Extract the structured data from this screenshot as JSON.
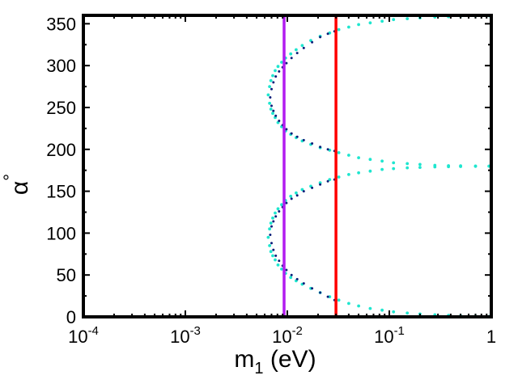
{
  "chart_data": {
    "type": "scatter",
    "title": "",
    "xlabel": {
      "main": "m",
      "sub": "1",
      "rest": " (eV)"
    },
    "ylabel": {
      "main": "α",
      "sup": "°"
    },
    "xscale": "log",
    "xlim": [
      0.0001,
      1
    ],
    "ylim": [
      0,
      360
    ],
    "x_ticks": [
      {
        "value": 0.0001,
        "base": "10",
        "exp": "-4"
      },
      {
        "value": 0.001,
        "base": "10",
        "exp": "-3"
      },
      {
        "value": 0.01,
        "base": "10",
        "exp": "-2"
      },
      {
        "value": 0.1,
        "base": "10",
        "exp": "-1"
      },
      {
        "value": 1,
        "base": "1",
        "exp": ""
      }
    ],
    "y_ticks": [
      {
        "value": 0,
        "label": "0"
      },
      {
        "value": 50,
        "label": "50"
      },
      {
        "value": 100,
        "label": "100"
      },
      {
        "value": 150,
        "label": "150"
      },
      {
        "value": 200,
        "label": "200"
      },
      {
        "value": 250,
        "label": "250"
      },
      {
        "value": 300,
        "label": "300"
      },
      {
        "value": 350,
        "label": "350"
      }
    ],
    "vertical_lines": [
      {
        "name": "lower-bound",
        "x": 0.0093,
        "color": "#b21cf0"
      },
      {
        "name": "upper-bound",
        "x": 0.03,
        "color": "#ff0000"
      }
    ],
    "series": [
      {
        "name": "cyan-region",
        "color": "#1ee6cf",
        "point_radius": 1.9,
        "points": [
          [
            0.0065,
            265
          ],
          [
            0.0067,
            255
          ],
          [
            0.0067,
            275
          ],
          [
            0.0069,
            248
          ],
          [
            0.0069,
            282
          ],
          [
            0.0072,
            243
          ],
          [
            0.0072,
            288
          ],
          [
            0.0076,
            238
          ],
          [
            0.0076,
            294
          ],
          [
            0.0081,
            232
          ],
          [
            0.0081,
            299
          ],
          [
            0.0088,
            227
          ],
          [
            0.0088,
            304
          ],
          [
            0.0096,
            222
          ],
          [
            0.0096,
            309
          ],
          [
            0.0108,
            218
          ],
          [
            0.0108,
            314
          ],
          [
            0.0122,
            214
          ],
          [
            0.0122,
            319
          ],
          [
            0.014,
            210
          ],
          [
            0.014,
            324
          ],
          [
            0.017,
            206
          ],
          [
            0.017,
            330
          ],
          [
            0.021,
            202
          ],
          [
            0.021,
            335
          ],
          [
            0.026,
            199
          ],
          [
            0.026,
            339
          ],
          [
            0.032,
            196
          ],
          [
            0.032,
            343
          ],
          [
            0.04,
            193
          ],
          [
            0.04,
            346
          ],
          [
            0.05,
            190
          ],
          [
            0.05,
            349
          ],
          [
            0.065,
            188
          ],
          [
            0.065,
            351
          ],
          [
            0.085,
            186
          ],
          [
            0.085,
            353
          ],
          [
            0.11,
            184
          ],
          [
            0.11,
            355
          ],
          [
            0.15,
            183
          ],
          [
            0.15,
            356
          ],
          [
            0.2,
            182
          ],
          [
            0.2,
            357
          ],
          [
            0.28,
            181
          ],
          [
            0.28,
            358
          ],
          [
            0.38,
            180.5
          ],
          [
            0.38,
            358.5
          ],
          [
            0.5,
            180.3
          ],
          [
            0.5,
            359
          ],
          [
            0.7,
            180.1
          ],
          [
            0.7,
            359.3
          ],
          [
            0.95,
            180
          ],
          [
            0.95,
            359.5
          ],
          [
            0.0065,
            95
          ],
          [
            0.0067,
            85
          ],
          [
            0.0067,
            105
          ],
          [
            0.0069,
            78
          ],
          [
            0.0069,
            112
          ],
          [
            0.0072,
            73
          ],
          [
            0.0072,
            118
          ],
          [
            0.0076,
            68
          ],
          [
            0.0076,
            124
          ],
          [
            0.0081,
            62
          ],
          [
            0.0081,
            129
          ],
          [
            0.0088,
            57
          ],
          [
            0.0088,
            134
          ],
          [
            0.0096,
            52
          ],
          [
            0.0096,
            139
          ],
          [
            0.0108,
            47
          ],
          [
            0.0108,
            144
          ],
          [
            0.0122,
            43
          ],
          [
            0.0122,
            148
          ],
          [
            0.014,
            39
          ],
          [
            0.014,
            152
          ],
          [
            0.017,
            34
          ],
          [
            0.017,
            156
          ],
          [
            0.021,
            29
          ],
          [
            0.021,
            160
          ],
          [
            0.026,
            24
          ],
          [
            0.026,
            164
          ],
          [
            0.032,
            20
          ],
          [
            0.032,
            167
          ],
          [
            0.04,
            16
          ],
          [
            0.04,
            170
          ],
          [
            0.05,
            13
          ],
          [
            0.05,
            172
          ],
          [
            0.065,
            10
          ],
          [
            0.065,
            174
          ],
          [
            0.085,
            8
          ],
          [
            0.085,
            176
          ],
          [
            0.11,
            6
          ],
          [
            0.11,
            177
          ],
          [
            0.15,
            4.5
          ],
          [
            0.15,
            178
          ],
          [
            0.2,
            3.5
          ],
          [
            0.2,
            178.5
          ],
          [
            0.28,
            2.5
          ],
          [
            0.28,
            179
          ],
          [
            0.38,
            1.8
          ],
          [
            0.38,
            179.3
          ],
          [
            0.5,
            1.2
          ],
          [
            0.5,
            179.5
          ],
          [
            0.7,
            0.8
          ],
          [
            0.7,
            179.7
          ],
          [
            0.95,
            0.5
          ],
          [
            0.95,
            179.9
          ]
        ]
      },
      {
        "name": "navy-region",
        "color": "#0d1f7a",
        "point_radius": 1.5,
        "points": [
          [
            0.0068,
            262
          ],
          [
            0.007,
            252
          ],
          [
            0.007,
            272
          ],
          [
            0.0073,
            246
          ],
          [
            0.0073,
            280
          ],
          [
            0.0077,
            240
          ],
          [
            0.0077,
            287
          ],
          [
            0.0083,
            234
          ],
          [
            0.0083,
            293
          ],
          [
            0.009,
            229
          ],
          [
            0.009,
            298
          ],
          [
            0.0098,
            224
          ],
          [
            0.0098,
            303
          ],
          [
            0.011,
            219
          ],
          [
            0.011,
            309
          ],
          [
            0.0125,
            215
          ],
          [
            0.0125,
            315
          ],
          [
            0.0145,
            211
          ],
          [
            0.0145,
            321
          ],
          [
            0.0175,
            207
          ],
          [
            0.0175,
            328
          ],
          [
            0.021,
            203
          ],
          [
            0.021,
            334
          ],
          [
            0.025,
            200
          ],
          [
            0.025,
            338
          ],
          [
            0.029,
            198
          ],
          [
            0.029,
            341
          ],
          [
            0.0068,
            98
          ],
          [
            0.007,
            88
          ],
          [
            0.007,
            108
          ],
          [
            0.0073,
            80
          ],
          [
            0.0073,
            114
          ],
          [
            0.0077,
            73
          ],
          [
            0.0077,
            120
          ],
          [
            0.0083,
            67
          ],
          [
            0.0083,
            126
          ],
          [
            0.009,
            61
          ],
          [
            0.009,
            131
          ],
          [
            0.0098,
            56
          ],
          [
            0.0098,
            136
          ],
          [
            0.011,
            50
          ],
          [
            0.011,
            141
          ],
          [
            0.0125,
            45
          ],
          [
            0.0125,
            145
          ],
          [
            0.0145,
            40
          ],
          [
            0.0145,
            150
          ],
          [
            0.0175,
            34
          ],
          [
            0.0175,
            154
          ],
          [
            0.021,
            29
          ],
          [
            0.021,
            158
          ],
          [
            0.025,
            24
          ],
          [
            0.025,
            162
          ],
          [
            0.029,
            20
          ],
          [
            0.029,
            164
          ]
        ]
      }
    ]
  }
}
